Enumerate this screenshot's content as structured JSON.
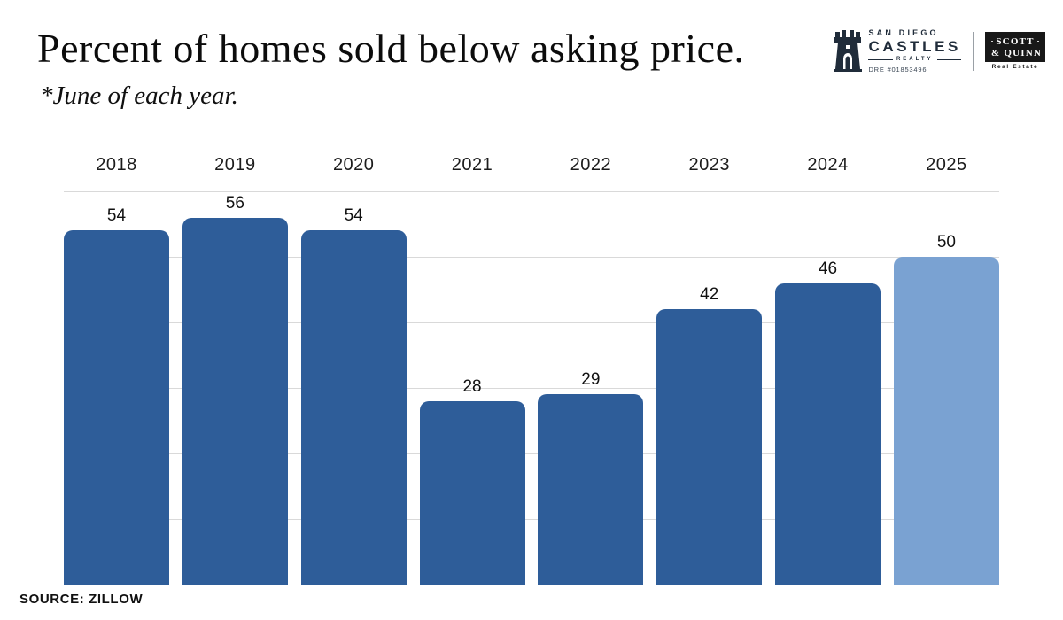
{
  "header": {
    "title": "Percent of homes sold below asking price.",
    "subtitle": "*June of each year."
  },
  "logos": {
    "castles": {
      "name_top": "SAN DIEGO",
      "name_main": "CASTLES",
      "name_sub": "REALTY",
      "license": "DRE #01853496",
      "color": "#202c3a"
    },
    "scott_quinn": {
      "line1": "SCOTT",
      "line2": "& QUINN",
      "tagline": "Real Estate",
      "box_color": "#181818"
    }
  },
  "chart_data": {
    "type": "bar",
    "categories": [
      "2018",
      "2019",
      "2020",
      "2021",
      "2022",
      "2023",
      "2024",
      "2025"
    ],
    "values": [
      54,
      56,
      54,
      28,
      29,
      42,
      46,
      50
    ],
    "title": "Percent of homes sold below asking price.",
    "subtitle": "*June of each year.",
    "xlabel": "",
    "ylabel": "",
    "ylim": [
      0,
      60
    ],
    "gridline_step": 10,
    "grid": true,
    "legend": false,
    "value_labels": true,
    "bar_color": "#2e5d99",
    "highlight_color": "#7aa2d2",
    "highlight_index": 7,
    "gridline_color": "#d9d9d9"
  },
  "footer": {
    "source": "SOURCE: ZILLOW"
  }
}
